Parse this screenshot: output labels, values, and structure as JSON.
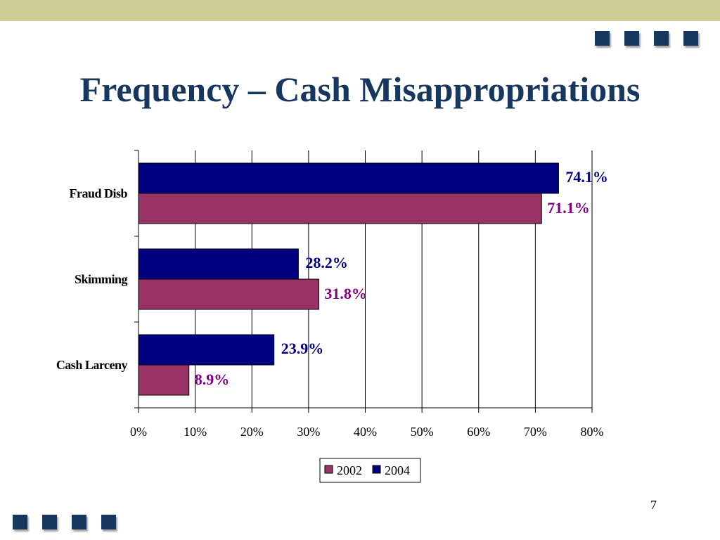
{
  "slide": {
    "title": "Frequency – Cash Misappropriations",
    "page_number": "7"
  },
  "colors": {
    "band": "#cfcc96",
    "square": "#17375e",
    "title": "#17375e",
    "series_2004": "#000080",
    "series_2002": "#993366",
    "label_2004": "#000080",
    "label_2002": "#800080"
  },
  "chart_data": {
    "type": "bar",
    "orientation": "horizontal",
    "categories": [
      "Fraud Disb",
      "Skimming",
      "Cash Larceny"
    ],
    "series": [
      {
        "name": "2002",
        "values": [
          71.1,
          31.8,
          8.9
        ],
        "labels": [
          "71.1%",
          "31.8%",
          "8.9%"
        ],
        "color": "#993366"
      },
      {
        "name": "2004",
        "values": [
          74.1,
          28.2,
          23.9
        ],
        "labels": [
          "74.1%",
          "28.2%",
          "23.9%"
        ],
        "color": "#000080"
      }
    ],
    "xlim": [
      0,
      80
    ],
    "x_ticks": [
      "0%",
      "10%",
      "20%",
      "30%",
      "40%",
      "50%",
      "60%",
      "70%",
      "80%"
    ],
    "grid": true,
    "legend_position": "bottom"
  }
}
